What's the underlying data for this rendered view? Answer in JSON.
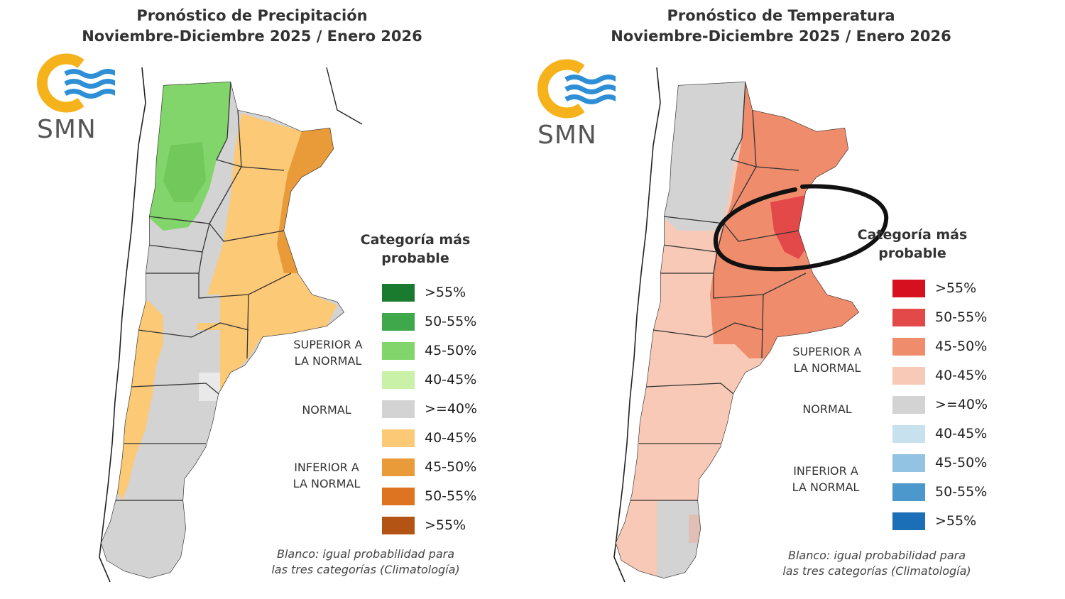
{
  "precipitation": {
    "title_line1": "Pronóstico de Precipitación",
    "title_line2": "Noviembre-Diciembre 2025 / Enero 2026",
    "logo_text": "SMN",
    "legend_title_line1": "Categoría más",
    "legend_title_line2": "probable",
    "group_above_line1": "SUPERIOR A",
    "group_above_line2": "LA NORMAL",
    "group_normal": "NORMAL",
    "group_below_line1": "INFERIOR A",
    "group_below_line2": "LA NORMAL",
    "legend": [
      {
        "label": ">55%",
        "color": "#1a7a2e"
      },
      {
        "label": "50-55%",
        "color": "#3fa84a"
      },
      {
        "label": "45-50%",
        "color": "#82d56a"
      },
      {
        "label": "40-45%",
        "color": "#c9f2a8"
      },
      {
        "label": ">=40%",
        "color": "#d3d3d3"
      },
      {
        "label": "40-45%",
        "color": "#fcc977"
      },
      {
        "label": "45-50%",
        "color": "#e89b38"
      },
      {
        "label": "50-55%",
        "color": "#dd7421"
      },
      {
        "label": ">55%",
        "color": "#b45414"
      }
    ],
    "footnote_line1": "Blanco: igual probabilidad para",
    "footnote_line2": "las tres categorías (Climatología)"
  },
  "temperature": {
    "title_line1": "Pronóstico de Temperatura",
    "title_line2": "Noviembre-Diciembre 2025 / Enero 2026",
    "logo_text": "SMN",
    "legend_title_line1": "Categoría más",
    "legend_title_line2": "probable",
    "group_above_line1": "SUPERIOR A",
    "group_above_line2": "LA NORMAL",
    "group_normal": "NORMAL",
    "group_below_line1": "INFERIOR A",
    "group_below_line2": "LA NORMAL",
    "legend": [
      {
        "label": ">55%",
        "color": "#d7101f"
      },
      {
        "label": "50-55%",
        "color": "#e4494a"
      },
      {
        "label": "45-50%",
        "color": "#ef8c6c"
      },
      {
        "label": "40-45%",
        "color": "#f7c9b6"
      },
      {
        "label": ">=40%",
        "color": "#d3d3d3"
      },
      {
        "label": "40-45%",
        "color": "#c7e1ef"
      },
      {
        "label": "45-50%",
        "color": "#93c3e2"
      },
      {
        "label": "50-55%",
        "color": "#4c97cb"
      },
      {
        "label": ">55%",
        "color": "#1b6fb6"
      }
    ],
    "footnote_line1": "Blanco: igual probabilidad para",
    "footnote_line2": "las tres categorías (Climatología)"
  },
  "colors": {
    "logo_orange": "#f5b21a",
    "logo_blue": "#2f8fd6",
    "annotation_ring": "#111111"
  }
}
